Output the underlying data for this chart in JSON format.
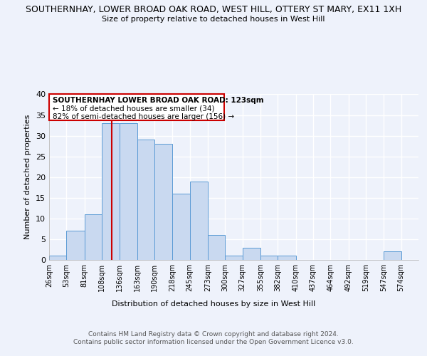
{
  "title_line1": "SOUTHERNHAY, LOWER BROAD OAK ROAD, WEST HILL, OTTERY ST MARY, EX11 1XH",
  "title_line2": "Size of property relative to detached houses in West Hill",
  "xlabel": "Distribution of detached houses by size in West Hill",
  "ylabel": "Number of detached properties",
  "bin_labels": [
    "26sqm",
    "53sqm",
    "81sqm",
    "108sqm",
    "136sqm",
    "163sqm",
    "190sqm",
    "218sqm",
    "245sqm",
    "273sqm",
    "300sqm",
    "327sqm",
    "355sqm",
    "382sqm",
    "410sqm",
    "437sqm",
    "464sqm",
    "492sqm",
    "519sqm",
    "547sqm",
    "574sqm"
  ],
  "bin_edges": [
    26,
    53,
    81,
    108,
    136,
    163,
    190,
    218,
    245,
    273,
    300,
    327,
    355,
    382,
    410,
    437,
    464,
    492,
    519,
    547,
    574,
    601
  ],
  "bar_heights": [
    1,
    7,
    11,
    33,
    33,
    29,
    28,
    16,
    19,
    6,
    1,
    3,
    1,
    1,
    0,
    0,
    0,
    0,
    0,
    2,
    0
  ],
  "bar_color": "#c9d9f0",
  "bar_edge_color": "#5b9bd5",
  "vline_x": 123,
  "vline_color": "#cc0000",
  "ylim": [
    0,
    40
  ],
  "yticks": [
    0,
    5,
    10,
    15,
    20,
    25,
    30,
    35,
    40
  ],
  "annotation_title": "SOUTHERNHAY LOWER BROAD OAK ROAD: 123sqm",
  "annotation_line2": "← 18% of detached houses are smaller (34)",
  "annotation_line3": "82% of semi-detached houses are larger (156) →",
  "footer_line1": "Contains HM Land Registry data © Crown copyright and database right 2024.",
  "footer_line2": "Contains public sector information licensed under the Open Government Licence v3.0.",
  "background_color": "#eef2fb",
  "grid_color": "#ffffff",
  "box_color": "#cc0000"
}
